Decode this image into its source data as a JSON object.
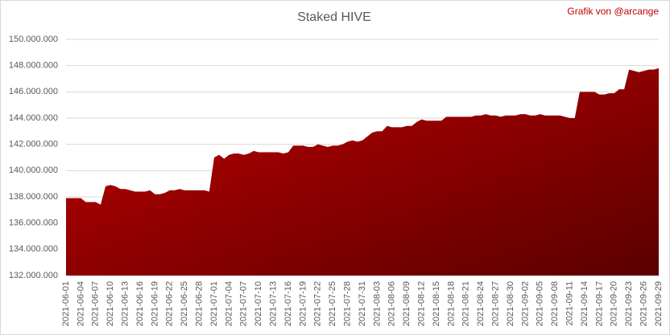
{
  "chart_data": {
    "type": "area",
    "title": "Staked HIVE",
    "annotation": "Grafik von @arcange",
    "color": "#c00000",
    "grid": true,
    "ylim": [
      132000000,
      150000000
    ],
    "yticks": [
      {
        "value": 132000000,
        "label": "132.000.000"
      },
      {
        "value": 134000000,
        "label": "134.000.000"
      },
      {
        "value": 136000000,
        "label": "136.000.000"
      },
      {
        "value": 138000000,
        "label": "138.000.000"
      },
      {
        "value": 140000000,
        "label": "140.000.000"
      },
      {
        "value": 142000000,
        "label": "142.000.000"
      },
      {
        "value": 144000000,
        "label": "144.000.000"
      },
      {
        "value": 146000000,
        "label": "146.000.000"
      },
      {
        "value": 148000000,
        "label": "148.000.000"
      },
      {
        "value": 150000000,
        "label": "150.000.000"
      }
    ],
    "categories": [
      "2021-06-01",
      null,
      null,
      "2021-06-04",
      null,
      null,
      "2021-06-07",
      null,
      null,
      "2021-06-10",
      null,
      null,
      "2021-06-13",
      null,
      null,
      "2021-06-16",
      null,
      null,
      "2021-06-19",
      null,
      null,
      "2021-06-22",
      null,
      null,
      "2021-06-25",
      null,
      null,
      "2021-06-28",
      null,
      null,
      "2021-07-01",
      null,
      null,
      "2021-07-04",
      null,
      null,
      "2021-07-07",
      null,
      null,
      "2021-07-10",
      null,
      null,
      "2021-07-13",
      null,
      null,
      "2021-07-16",
      null,
      null,
      "2021-07-19",
      null,
      null,
      "2021-07-22",
      null,
      null,
      "2021-07-25",
      null,
      null,
      "2021-07-28",
      null,
      null,
      "2021-07-31",
      null,
      null,
      "2021-08-03",
      null,
      null,
      "2021-08-06",
      null,
      null,
      "2021-08-09",
      null,
      null,
      "2021-08-12",
      null,
      null,
      "2021-08-15",
      null,
      null,
      "2021-08-18",
      null,
      null,
      "2021-08-21",
      null,
      null,
      "2021-08-24",
      null,
      null,
      "2021-08-27",
      null,
      null,
      "2021-08-30",
      null,
      null,
      "2021-09-02",
      null,
      null,
      "2021-09-05",
      null,
      null,
      "2021-09-08",
      null,
      null,
      "2021-09-11",
      null,
      null,
      "2021-09-14",
      null,
      null,
      "2021-09-17",
      null,
      null,
      "2021-09-20",
      null,
      null,
      "2021-09-23",
      null,
      null,
      "2021-09-26",
      null,
      null,
      "2021-09-29"
    ],
    "values": [
      137900000,
      137900000,
      137900000,
      137900000,
      137600000,
      137600000,
      137600000,
      137400000,
      138800000,
      138900000,
      138800000,
      138600000,
      138600000,
      138500000,
      138400000,
      138400000,
      138400000,
      138500000,
      138200000,
      138200000,
      138300000,
      138500000,
      138500000,
      138600000,
      138500000,
      138500000,
      138500000,
      138500000,
      138500000,
      138400000,
      141000000,
      141200000,
      140900000,
      141200000,
      141300000,
      141300000,
      141200000,
      141300000,
      141500000,
      141400000,
      141400000,
      141400000,
      141400000,
      141400000,
      141300000,
      141400000,
      141900000,
      141900000,
      141900000,
      141800000,
      141800000,
      142000000,
      141900000,
      141800000,
      141900000,
      141900000,
      142000000,
      142200000,
      142300000,
      142200000,
      142300000,
      142600000,
      142900000,
      143000000,
      143000000,
      143400000,
      143300000,
      143300000,
      143300000,
      143400000,
      143400000,
      143700000,
      143900000,
      143800000,
      143800000,
      143800000,
      143800000,
      144100000,
      144100000,
      144100000,
      144100000,
      144100000,
      144100000,
      144200000,
      144200000,
      144300000,
      144200000,
      144200000,
      144100000,
      144200000,
      144200000,
      144200000,
      144300000,
      144300000,
      144200000,
      144200000,
      144300000,
      144200000,
      144200000,
      144200000,
      144200000,
      144100000,
      144000000,
      144000000,
      146000000,
      146000000,
      146000000,
      146000000,
      145800000,
      145800000,
      145900000,
      145900000,
      146200000,
      146200000,
      147700000,
      147600000,
      147500000,
      147600000,
      147700000,
      147700000,
      147800000
    ]
  }
}
